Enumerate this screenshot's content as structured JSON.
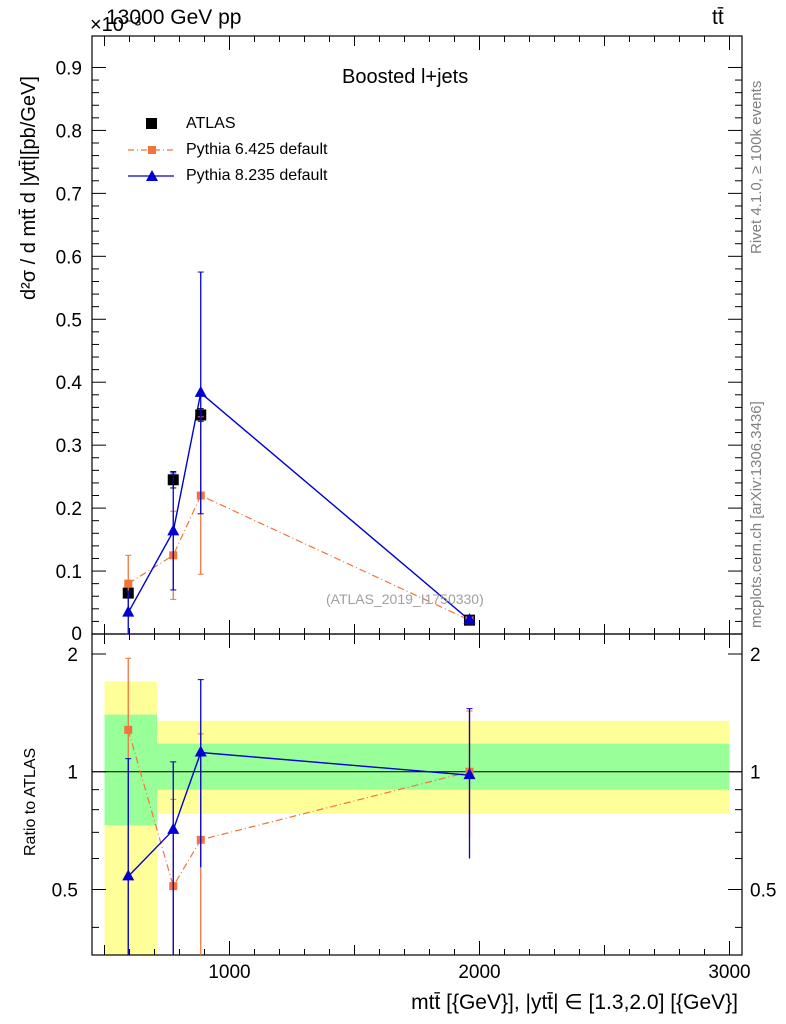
{
  "header": {
    "left": "13000 GeV pp",
    "right": "tt̄",
    "exponent": "×10⁻³"
  },
  "side": {
    "rivet": "Rivet 4.1.0, ≥ 100k events",
    "mcplots": "mcplots.cern.ch [arXiv:1306.3436]"
  },
  "colors": {
    "atlas": "#000000",
    "py6": "#f0743c",
    "py8": "#0000d0",
    "band_inner": "#99ff99",
    "band_outer": "#ffff99"
  },
  "chart_data": [
    {
      "type": "line",
      "title": "Boosted l+jets",
      "watermark": "(ATLAS_2019_I1750330)",
      "xlabel": "",
      "ylabel": "d²σ / d mtt̄ d |ytt̄|[pb/GeV]",
      "xlim": [
        450,
        3050
      ],
      "ylim": [
        0,
        0.95
      ],
      "y_scale_note": "×10⁻³",
      "xticks": [
        1000,
        2000,
        3000
      ],
      "yticks": [
        0.1,
        0.2,
        0.3,
        0.4,
        0.5,
        0.6,
        0.7,
        0.8,
        0.9
      ],
      "ytick_labels": [
        "0.1",
        "0.2",
        "0.3",
        "0.4",
        "0.5",
        "0.6",
        "0.7",
        "0.8",
        "0.9"
      ],
      "y_zero_label": "0",
      "legend_placement": "top-left",
      "series": [
        {
          "name": "ATLAS",
          "marker": "square",
          "line": "none",
          "x": [
            595,
            775,
            885,
            1960
          ],
          "y": [
            0.065,
            0.245,
            0.348,
            0.022
          ],
          "err": [
            0.006,
            0.013,
            0.01,
            0.002
          ]
        },
        {
          "name": "Pythia 6.425 default",
          "marker": "square-small",
          "line": "dashdot",
          "x": [
            595,
            775,
            885,
            1960
          ],
          "y": [
            0.08,
            0.125,
            0.22,
            0.022
          ],
          "err": [
            0.045,
            0.07,
            0.125,
            0.006
          ]
        },
        {
          "name": "Pythia 8.235 default",
          "marker": "triangle",
          "line": "solid",
          "x": [
            595,
            775,
            885,
            1960
          ],
          "y": [
            0.034,
            0.163,
            0.383,
            0.022
          ],
          "err": [
            0.034,
            0.093,
            0.192,
            0.006
          ]
        }
      ]
    },
    {
      "type": "line",
      "xlabel": "mtt̄ [{GeV}], |ytt̄| ∈ [1.3,2.0] [{GeV}]",
      "ylabel": "Ratio to ATLAS",
      "xlim": [
        450,
        3050
      ],
      "ylim": [
        0.34,
        2.25
      ],
      "xticks": [
        1000,
        2000,
        3000
      ],
      "xtick_labels": [
        "1000",
        "2000",
        "3000"
      ],
      "yticks": [
        0.5,
        1,
        2
      ],
      "ytick_labels": [
        "0.5",
        "1",
        "2"
      ],
      "reference": 1,
      "bands": [
        {
          "x0": 500,
          "x1": 710,
          "inner": [
            0.73,
            1.4
          ],
          "outer": [
            0.34,
            1.7
          ]
        },
        {
          "x0": 710,
          "x1": 3000,
          "inner": [
            0.9,
            1.18
          ],
          "outer": [
            0.78,
            1.35
          ]
        }
      ],
      "series": [
        {
          "name": "Pythia 6.425 default",
          "x": [
            595,
            775,
            885,
            1960
          ],
          "y": [
            1.28,
            0.51,
            0.67,
            1.0
          ],
          "lo": [
            0.34,
            0.34,
            0.34,
            0.68
          ],
          "hi": [
            1.95,
            0.85,
            1.25,
            1.43
          ]
        },
        {
          "name": "Pythia 8.235 default",
          "x": [
            595,
            775,
            885,
            1960
          ],
          "y": [
            0.54,
            0.71,
            1.12,
            0.98
          ],
          "lo": [
            0.34,
            0.34,
            0.57,
            0.6
          ],
          "hi": [
            1.08,
            1.06,
            1.72,
            1.45
          ]
        }
      ]
    }
  ]
}
